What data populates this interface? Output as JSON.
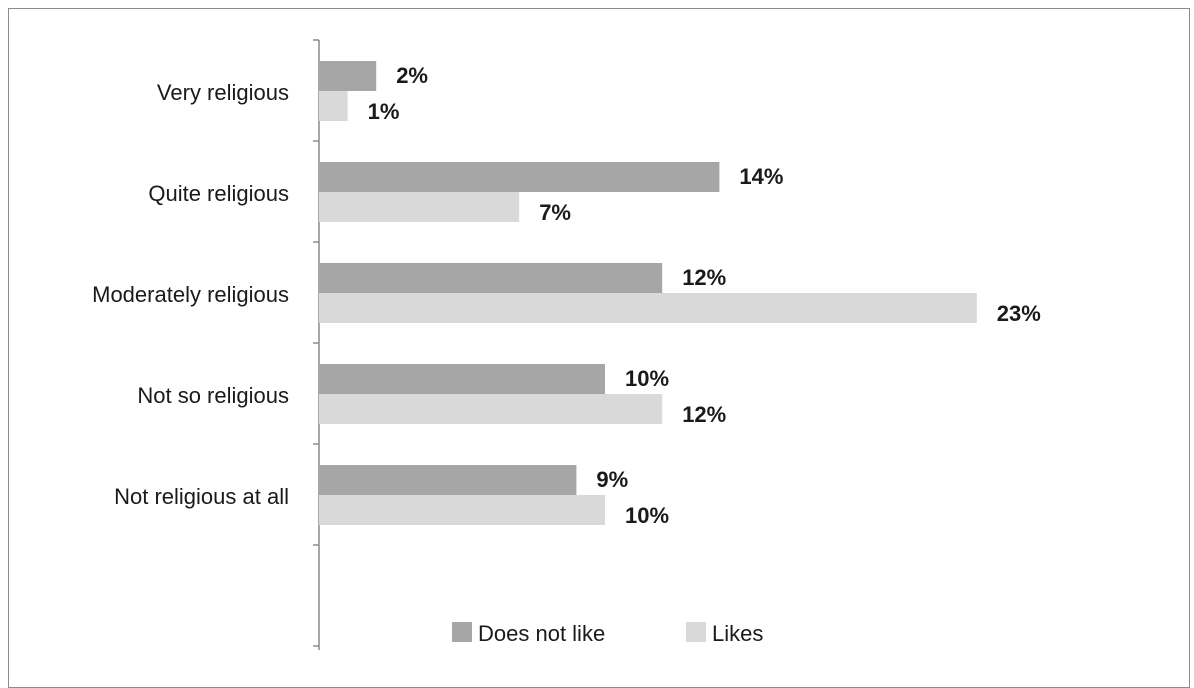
{
  "chart_data": {
    "type": "bar",
    "orientation": "horizontal",
    "categories": [
      "Very religious",
      "Quite religious",
      "Moderately religious",
      "Not so religious",
      "Not religious at all"
    ],
    "series": [
      {
        "name": "Does not like",
        "values": [
          2,
          14,
          12,
          10,
          9
        ],
        "labels": [
          "2%",
          "14%",
          "12%",
          "10%",
          "9%"
        ],
        "color": "#a6a6a6"
      },
      {
        "name": "Likes",
        "values": [
          1,
          7,
          23,
          12,
          10
        ],
        "labels": [
          "1%",
          "7%",
          "23%",
          "12%",
          "10%"
        ],
        "color": "#d9d9d9"
      }
    ],
    "title": "",
    "xlabel": "",
    "ylabel": "",
    "xlim": [
      0,
      25
    ],
    "grid": false,
    "legend_position": "bottom"
  }
}
